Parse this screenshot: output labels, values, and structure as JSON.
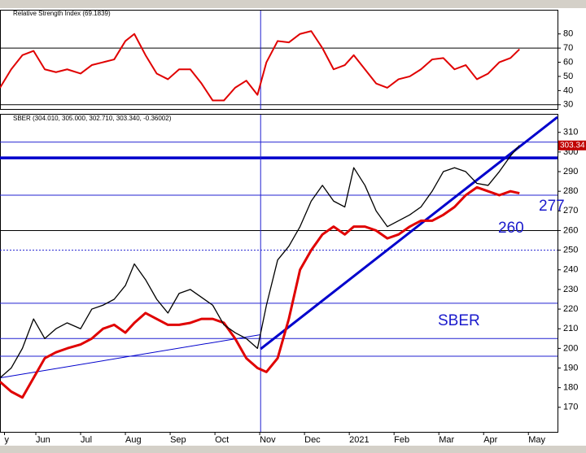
{
  "chart_data": [
    {
      "type": "line",
      "title": "Relative Strength Index (69.1839)",
      "x": [
        0.2,
        0.45,
        0.7,
        0.95,
        1.2,
        1.45,
        1.7,
        2.0,
        2.25,
        2.5,
        2.75,
        3.0,
        3.2,
        3.45,
        3.7,
        3.95,
        4.2,
        4.45,
        4.7,
        4.95,
        5.2,
        5.45,
        5.7,
        5.95,
        6.15,
        6.4,
        6.65,
        6.9,
        7.15,
        7.4,
        7.65,
        7.9,
        8.1,
        8.35,
        8.6,
        8.85,
        9.1,
        9.35,
        9.6,
        9.85,
        10.1,
        10.35,
        10.6,
        10.85,
        11.1,
        11.35,
        11.6,
        11.8
      ],
      "series": [
        {
          "color": "#e00000",
          "width": 2,
          "values": [
            42,
            55,
            65,
            68,
            55,
            53,
            55,
            52,
            58,
            60,
            62,
            75,
            80,
            65,
            52,
            48,
            55,
            55,
            45,
            33,
            33,
            42,
            47,
            37,
            60,
            75,
            74,
            80,
            82,
            70,
            55,
            58,
            65,
            55,
            45,
            42,
            48,
            50,
            55,
            62,
            63,
            55,
            58,
            48,
            52,
            60,
            63,
            69.1839
          ]
        }
      ],
      "xlim": [
        0.2,
        12.65
      ],
      "ylim": [
        27,
        96.5
      ],
      "yticks": [
        30,
        40,
        50,
        60,
        70,
        80
      ],
      "hlines": [
        {
          "value": 70,
          "color": "#000000",
          "width": 1
        },
        {
          "value": 30,
          "color": "#000000",
          "width": 1
        }
      ],
      "vline": 6.02
    },
    {
      "type": "line",
      "title": "SBER (304.010, 305.000, 302.710, 303.340, -0.36002)",
      "x": [
        0.2,
        0.45,
        0.7,
        0.95,
        1.2,
        1.45,
        1.7,
        2.0,
        2.25,
        2.5,
        2.75,
        3.0,
        3.2,
        3.45,
        3.7,
        3.95,
        4.2,
        4.45,
        4.7,
        4.95,
        5.2,
        5.45,
        5.7,
        5.95,
        6.15,
        6.4,
        6.65,
        6.9,
        7.15,
        7.4,
        7.65,
        7.9,
        8.1,
        8.35,
        8.6,
        8.85,
        9.1,
        9.35,
        9.6,
        9.85,
        10.1,
        10.35,
        10.6,
        10.85,
        11.1,
        11.35,
        11.6,
        11.8
      ],
      "series": [
        {
          "color": "#000000",
          "width": 1.3,
          "values": [
            185,
            190,
            200,
            215,
            205,
            210,
            213,
            210,
            220,
            222,
            225,
            232,
            243,
            235,
            225,
            218,
            228,
            230,
            226,
            222,
            212,
            208,
            205,
            200,
            222,
            245,
            252,
            262,
            275,
            283,
            275,
            272,
            292,
            283,
            270,
            262,
            265,
            268,
            272,
            280,
            290,
            292,
            290,
            284,
            283,
            290,
            298,
            303.34
          ]
        },
        {
          "color": "#e00000",
          "width": 3,
          "values": [
            183,
            178,
            175,
            185,
            195,
            198,
            200,
            202,
            205,
            210,
            212,
            208,
            213,
            218,
            215,
            212,
            212,
            213,
            215,
            215,
            213,
            205,
            195,
            190,
            188,
            195,
            215,
            240,
            250,
            258,
            262,
            258,
            262,
            262,
            260,
            256,
            258,
            262,
            265,
            265,
            268,
            272,
            278,
            282,
            280,
            278,
            280,
            279
          ]
        }
      ],
      "price_label": "303.34",
      "xlim": [
        0.2,
        12.65
      ],
      "ylim": [
        157.5,
        319
      ],
      "yticks": [
        170,
        180,
        190,
        200,
        210,
        220,
        230,
        240,
        250,
        260,
        270,
        280,
        290,
        300,
        310
      ],
      "xticks": [
        {
          "value": 0.3,
          "label": "y"
        },
        {
          "value": 1,
          "label": "Jun"
        },
        {
          "value": 2,
          "label": "Jul"
        },
        {
          "value": 3,
          "label": "Aug"
        },
        {
          "value": 4,
          "label": "Sep"
        },
        {
          "value": 5,
          "label": "Oct"
        },
        {
          "value": 6,
          "label": "Nov"
        },
        {
          "value": 7,
          "label": "Dec"
        },
        {
          "value": 8,
          "label": "2021"
        },
        {
          "value": 9,
          "label": "Feb"
        },
        {
          "value": 10,
          "label": "Mar"
        },
        {
          "value": 11,
          "label": "Apr"
        },
        {
          "value": 12,
          "label": "May"
        }
      ],
      "hlines": [
        {
          "value": 305,
          "color": "#2020d0",
          "width": 1
        },
        {
          "value": 297,
          "color": "#0000cc",
          "width": 3.5
        },
        {
          "value": 278,
          "color": "#2020d0",
          "width": 1
        },
        {
          "value": 260,
          "color": "#000000",
          "width": 1
        },
        {
          "value": 250,
          "color": "#2020d0",
          "width": 1,
          "dash": true
        },
        {
          "value": 223,
          "color": "#2020d0",
          "width": 1
        },
        {
          "value": 205,
          "color": "#2020d0",
          "width": 1
        },
        {
          "value": 196,
          "color": "#2020d0",
          "width": 1
        }
      ],
      "trendlines": [
        {
          "x": [
            6.02,
            12.65
          ],
          "y": [
            199.7,
            317.8
          ],
          "color": "#0000cc",
          "width": 3
        },
        {
          "x": [
            0.2,
            6.02
          ],
          "y": [
            185,
            207
          ],
          "color": "#0000cc",
          "width": 1
        }
      ],
      "vline": 6.02,
      "annotations": [
        "277",
        "260",
        "SBER"
      ]
    }
  ]
}
